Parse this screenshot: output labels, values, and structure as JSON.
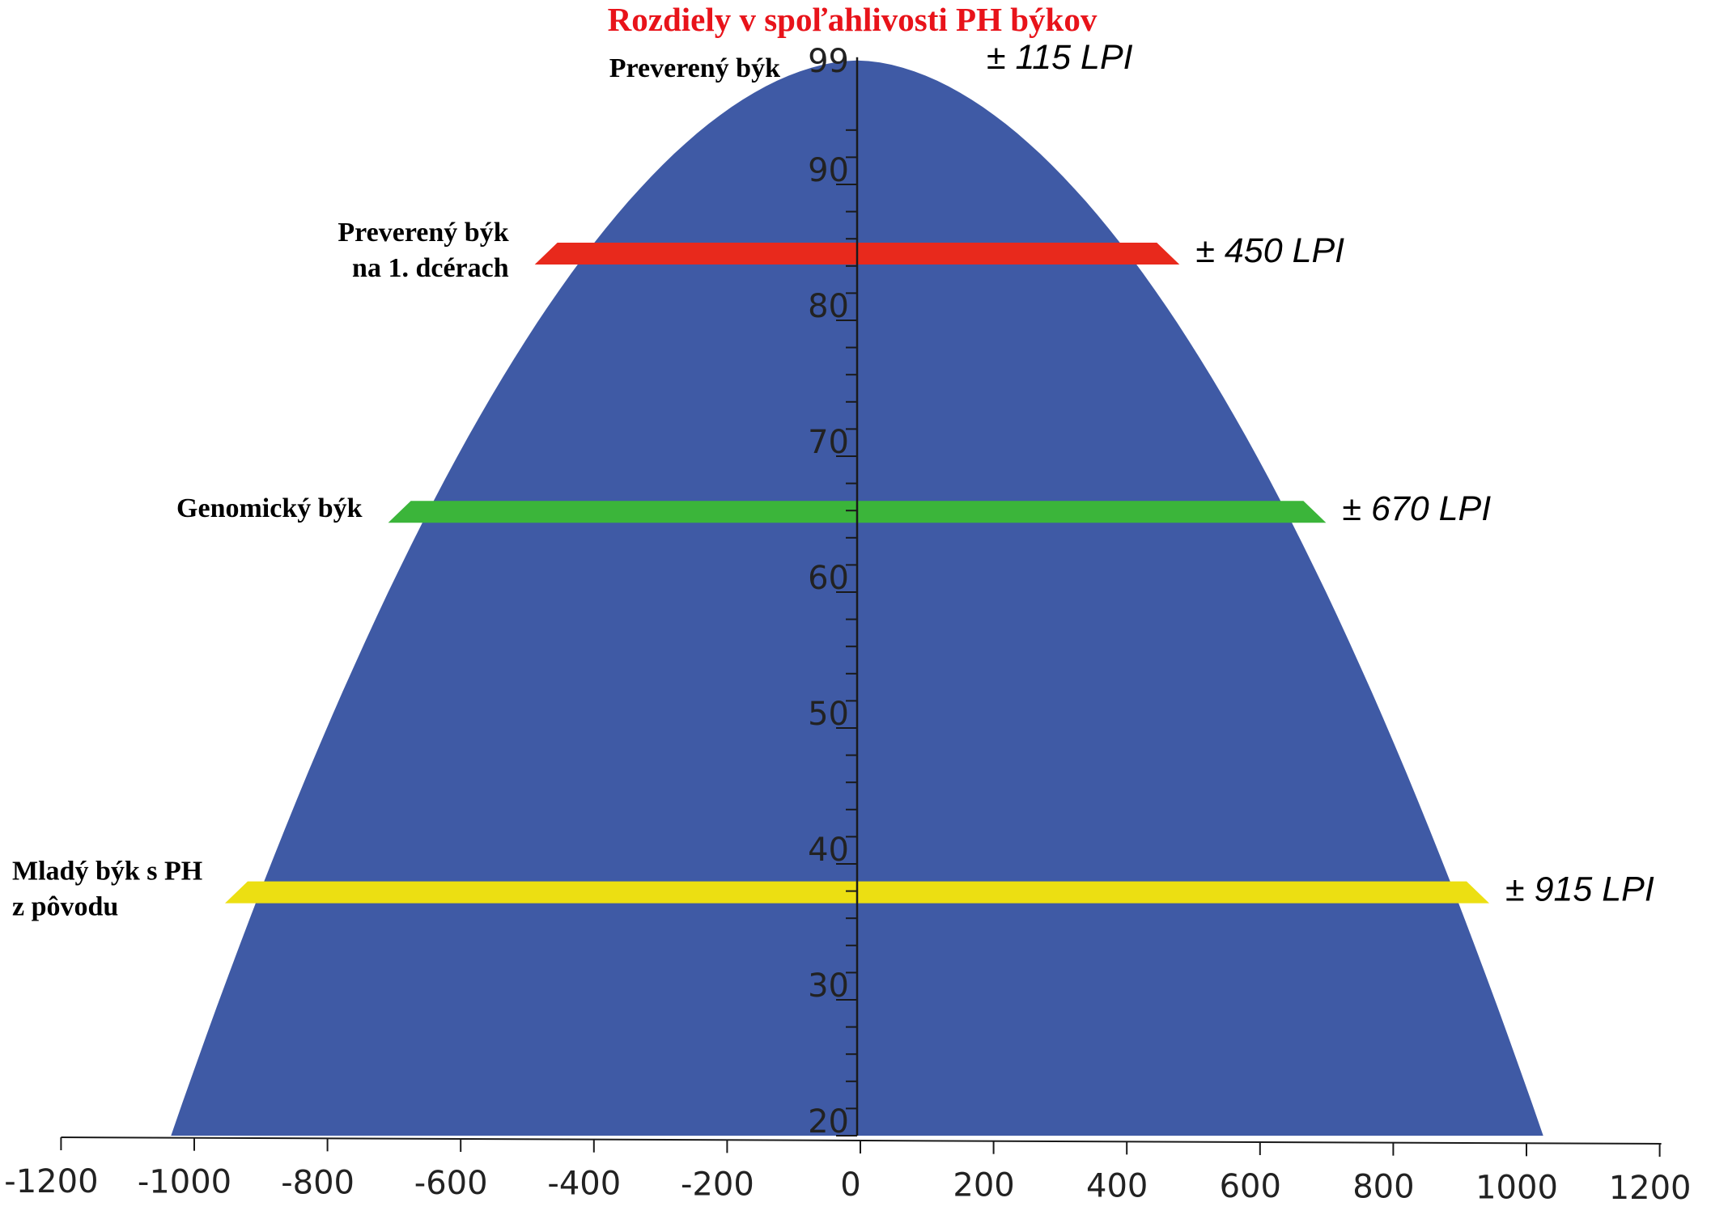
{
  "chart_data": {
    "type": "area",
    "title": "Rozdiely v spoľahlivosti PH býkov",
    "x_ticks": [
      -1200,
      -1000,
      -800,
      -600,
      -400,
      -200,
      0,
      200,
      400,
      600,
      800,
      1000,
      1200
    ],
    "y_ticks": [
      20,
      30,
      40,
      50,
      60,
      70,
      80,
      90,
      99
    ],
    "xlim": [
      -1200,
      1200
    ],
    "ylim": [
      20,
      99
    ],
    "curve": {
      "color": "#3f5aa5",
      "peak_y": 99,
      "half_width_at_20": 1030
    },
    "bands": [
      {
        "label": [
          "Preverený býk"
        ],
        "reliability": 99,
        "lpi": "± 115 LPI",
        "half_width": 115,
        "color": null
      },
      {
        "label": [
          "Preverený býk",
          "na 1. dcérach"
        ],
        "reliability": 85,
        "lpi": "± 450 LPI",
        "half_width": 450,
        "color": "#e8291c"
      },
      {
        "label": [
          "Genomický býk"
        ],
        "reliability": 66,
        "lpi": "± 670 LPI",
        "half_width": 670,
        "color": "#3bb53a"
      },
      {
        "label": [
          "Mladý býk s PH",
          "z pôvodu"
        ],
        "reliability": 38,
        "lpi": "± 915 LPI",
        "half_width": 915,
        "color": "#ecdf12"
      }
    ]
  }
}
